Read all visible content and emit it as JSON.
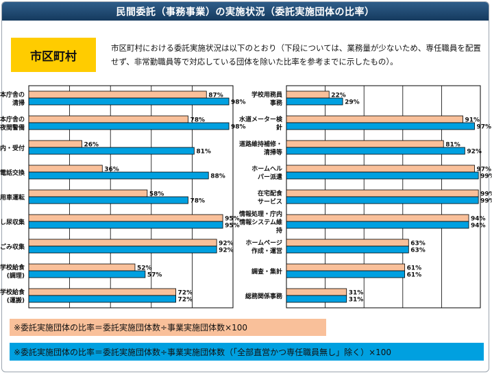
{
  "title": "民間委託（事務事業）の実施状況（委託実施団体の比率）",
  "region_label": "市区町村",
  "description": "市区町村における委託実施状況は以下のとおり（下段については、業務量が少ないため、専任職員を配置せず、非常勤職員等で対応している団体を除いた比率を参考までに示したもの）。",
  "colors": {
    "series1": "#f9c09a",
    "series2": "#00a0e0",
    "title_bg": "#1e4670",
    "badge": "#ffcc00"
  },
  "notes": {
    "note1": "※委託実施団体の比率＝委託実施団体数÷事業実施団体数×100",
    "note2": "※委託実施団体の比率＝委託実施団体数÷事業実施団体数（「全部直営かつ専任職員無し」除く）×100"
  },
  "chart_data": [
    {
      "type": "bar",
      "orientation": "horizontal",
      "xlim": [
        0,
        100
      ],
      "grid": true,
      "categories": [
        [
          "本庁舎の",
          "清掃"
        ],
        [
          "本庁舎の",
          "夜間警備"
        ],
        [
          "案内・受付"
        ],
        [
          "電話交換"
        ],
        [
          "公用車運転"
        ],
        [
          "し尿収集"
        ],
        [
          "一般ごみ収集"
        ],
        [
          "学校給食",
          "(調理)"
        ],
        [
          "学校給食",
          "(運搬)"
        ]
      ],
      "series": [
        {
          "values": [
            87,
            78,
            26,
            36,
            58,
            95,
            92,
            52,
            72
          ]
        },
        {
          "values": [
            98,
            98,
            81,
            88,
            78,
            95,
            92,
            57,
            72
          ]
        }
      ]
    },
    {
      "type": "bar",
      "orientation": "horizontal",
      "xlim": [
        0,
        100
      ],
      "grid": true,
      "categories": [
        [
          "学校用務員",
          "事務"
        ],
        [
          "水道メーター検",
          "針"
        ],
        [
          "道路維持補修・",
          "清掃等"
        ],
        [
          "ホームヘル",
          "パー派遣"
        ],
        [
          "在宅配食",
          "サービス"
        ],
        [
          "情報処理・庁内",
          "情報システム維",
          "持"
        ],
        [
          "ホームページ",
          "作成・運営"
        ],
        [
          "調査・集計"
        ],
        [
          "総務関係事務"
        ]
      ],
      "series": [
        {
          "values": [
            22,
            91,
            81,
            97,
            99,
            94,
            63,
            61,
            31
          ]
        },
        {
          "values": [
            29,
            97,
            92,
            99,
            99,
            94,
            63,
            61,
            31
          ]
        }
      ]
    }
  ]
}
